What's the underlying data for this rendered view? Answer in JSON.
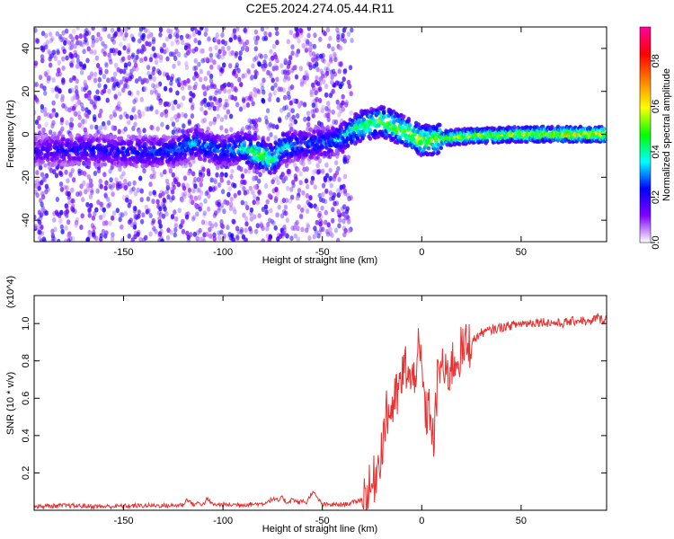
{
  "figure": {
    "title": "C2E5.2024.274.05.44.R11"
  },
  "chart_data": [
    {
      "type": "heatmap",
      "title": "C2E5.2024.274.05.44.R11",
      "xlabel": "Height of straight line (km)",
      "ylabel": "Frequency (Hz)",
      "xlim": [
        -195,
        93
      ],
      "ylim": [
        -50,
        50
      ],
      "xticks": [
        -150,
        -100,
        -50,
        0,
        50
      ],
      "xtick_labels": [
        "-150",
        "-100",
        "-50",
        "0",
        "50"
      ],
      "yticks": [
        -40,
        -20,
        0,
        20,
        40
      ],
      "ytick_labels": [
        "-40",
        "-20",
        "0",
        "20",
        "40"
      ],
      "colorbar": {
        "label": "Normalized spectral amplitude",
        "range": [
          0.0,
          0.95
        ],
        "ticks": [
          0.0,
          0.2,
          0.4,
          0.6,
          0.8
        ],
        "tick_labels": [
          "0.0",
          "0.2",
          "0.4",
          "0.6",
          "0.8"
        ],
        "colormap": [
          "#ffffff",
          "#8000ff",
          "#0000ff",
          "#00ffff",
          "#00ff00",
          "#ffff00",
          "#ff8000",
          "#ff0000",
          "#ff00a0"
        ]
      },
      "ridge": {
        "x": [
          -195,
          -170,
          -150,
          -125,
          -115,
          -100,
          -90,
          -80,
          -75,
          -70,
          -60,
          -50,
          -40,
          -35,
          -30,
          -20,
          -10,
          0,
          10,
          20,
          50,
          93
        ],
        "freq": [
          -8,
          -7,
          -8,
          -8,
          -4,
          -8,
          -6,
          -10,
          -12,
          -6,
          -5,
          -4,
          -2,
          2,
          4,
          6,
          2,
          -3,
          -2,
          -1,
          0,
          0
        ],
        "amplitude": [
          0.2,
          0.25,
          0.25,
          0.3,
          0.35,
          0.3,
          0.4,
          0.55,
          0.5,
          0.4,
          0.3,
          0.3,
          0.35,
          0.45,
          0.5,
          0.55,
          0.55,
          0.6,
          0.55,
          0.6,
          0.6,
          0.7
        ]
      },
      "grid": false
    },
    {
      "type": "line",
      "title": "",
      "xlabel": "Height of straight line (km)",
      "ylabel": "SNR (10 * v/v)",
      "y_multiplier": "(x10^4)",
      "xlim": [
        -195,
        93
      ],
      "ylim": [
        0.0,
        1.15
      ],
      "xticks": [
        -150,
        -100,
        -50,
        0,
        50
      ],
      "xtick_labels": [
        "-150",
        "-100",
        "-50",
        "0",
        "50"
      ],
      "yticks": [
        0.2,
        0.4,
        0.6,
        0.8,
        1.0
      ],
      "ytick_labels": [
        "0.2",
        "0.4",
        "0.6",
        "0.8",
        "1.0"
      ],
      "series": [
        {
          "color": "#e83030",
          "x": [
            -195,
            -180,
            -160,
            -140,
            -125,
            -120,
            -118,
            -115,
            -112,
            -110,
            -108,
            -105,
            -100,
            -90,
            -80,
            -75,
            -72,
            -70,
            -68,
            -65,
            -62,
            -60,
            -58,
            -55,
            -50,
            -45,
            -40,
            -35,
            -30,
            -25,
            -22,
            -20,
            -18,
            -15,
            -12,
            -10,
            -8,
            -5,
            -2,
            0,
            2,
            4,
            6,
            8,
            10,
            12,
            15,
            20,
            25,
            30,
            40,
            50,
            60,
            70,
            80,
            85,
            88,
            90,
            93
          ],
          "y": [
            0.02,
            0.025,
            0.02,
            0.025,
            0.025,
            0.03,
            0.06,
            0.03,
            0.04,
            0.03,
            0.06,
            0.03,
            0.03,
            0.03,
            0.035,
            0.06,
            0.05,
            0.07,
            0.04,
            0.06,
            0.04,
            0.05,
            0.04,
            0.1,
            0.03,
            0.03,
            0.03,
            0.04,
            0.06,
            0.12,
            0.25,
            0.35,
            0.5,
            0.55,
            0.62,
            0.7,
            0.78,
            0.65,
            0.85,
            0.75,
            0.5,
            0.55,
            0.35,
            0.7,
            0.8,
            0.7,
            0.78,
            0.85,
            0.9,
            0.95,
            0.98,
            1.0,
            1.01,
            1.0,
            1.02,
            1.0,
            1.04,
            1.02,
            1.03
          ]
        }
      ],
      "grid": false
    }
  ]
}
